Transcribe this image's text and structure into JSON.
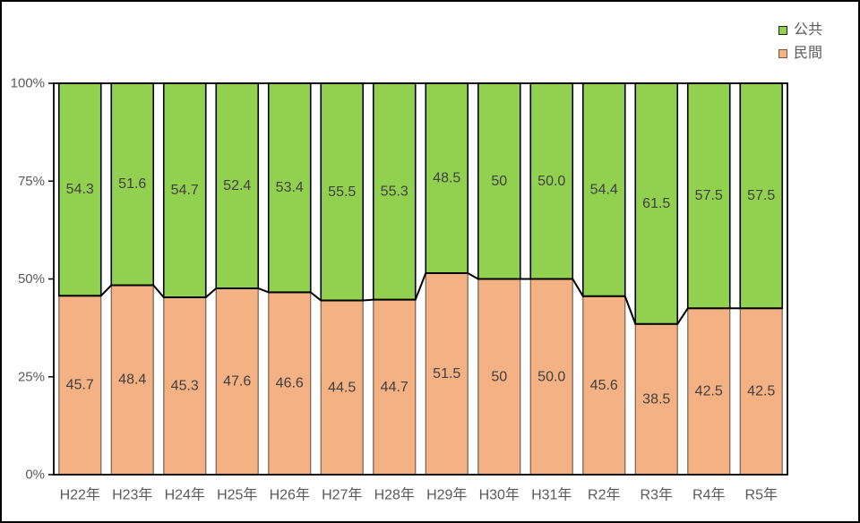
{
  "chart_data": {
    "type": "bar",
    "subtype": "stacked-100-percent-column",
    "title": "",
    "categories": [
      "H22年",
      "H23年",
      "H24年",
      "H25年",
      "H26年",
      "H27年",
      "H28年",
      "H29年",
      "H30年",
      "H31年",
      "R2年",
      "R3年",
      "R4年",
      "R5年"
    ],
    "series": [
      {
        "name": "公共",
        "color": "#92D050",
        "values": [
          "54.3",
          "51.6",
          "54.7",
          "52.4",
          "53.4",
          "55.5",
          "55.3",
          "48.5",
          "50",
          "50.0",
          "54.4",
          "61.5",
          "57.5",
          "57.5"
        ]
      },
      {
        "name": "民間",
        "color": "#F4B183",
        "values": [
          "45.7",
          "48.4",
          "45.3",
          "47.6",
          "46.6",
          "44.5",
          "44.7",
          "51.5",
          "50",
          "50.0",
          "45.6",
          "38.5",
          "42.5",
          "42.5"
        ]
      }
    ],
    "y_axis": {
      "tick_labels": [
        "0%",
        "25%",
        "50%",
        "75%",
        "100%"
      ],
      "min": 0,
      "max": 100,
      "grid": "off"
    },
    "legend_position": "top-right",
    "has_series_lines": true,
    "colors": {
      "series_line": "#000000",
      "plot_border": "#000000",
      "data_label": "#404040",
      "axis_text": "#595959"
    }
  }
}
